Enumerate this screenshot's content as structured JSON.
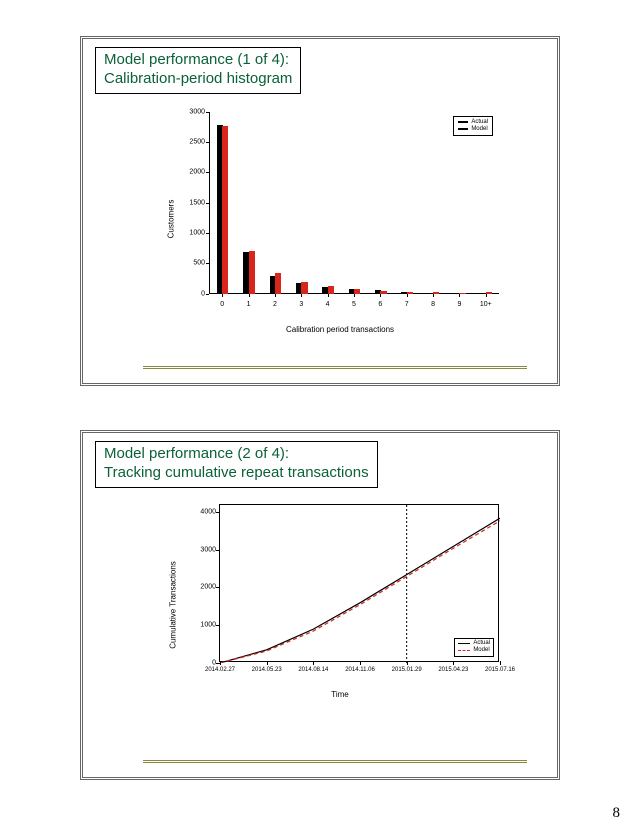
{
  "page_number": "8",
  "slide1": {
    "title_l1": "Model performance (1 of 4):",
    "title_l2": "Calibration-period histogram",
    "chart": {
      "type": "bar",
      "ylabel": "Customers",
      "xlabel": "Calibration period transactions",
      "categories": [
        "0",
        "1",
        "2",
        "3",
        "4",
        "5",
        "6",
        "7",
        "8",
        "9",
        "10+"
      ],
      "y_ticks": [
        0,
        500,
        1000,
        1500,
        2000,
        2500,
        3000
      ],
      "ylim": [
        0,
        3000
      ],
      "series": [
        {
          "name": "Actual",
          "color": "#000000",
          "values": [
            2780,
            680,
            290,
            180,
            110,
            70,
            50,
            30,
            15,
            10,
            10
          ]
        },
        {
          "name": "Model",
          "color": "#d8261c",
          "values": [
            2760,
            700,
            330,
            190,
            120,
            75,
            48,
            28,
            18,
            12,
            18
          ]
        }
      ],
      "bar_width": 0.4,
      "legend_border": "#000000",
      "axis_color": "#000000",
      "background": "#ffffff"
    }
  },
  "slide2": {
    "title_l1": "Model performance (2 of 4):",
    "title_l2": "Tracking cumulative repeat transactions",
    "chart": {
      "type": "line",
      "ylabel": "Cumulative Transactions",
      "xlabel": "Time",
      "x_ticks": [
        "2014-02-27",
        "2014-05-23",
        "2014-08-14",
        "2014-11-06",
        "2015-01-29",
        "2015-04-23",
        "2015-07-16"
      ],
      "y_ticks": [
        0,
        1000,
        2000,
        3000,
        4000
      ],
      "ylim": [
        0,
        4200
      ],
      "vline_index": 4,
      "series": [
        {
          "name": "Actual",
          "color": "#000000",
          "dash": "solid",
          "values": [
            0,
            350,
            900,
            1600,
            2350,
            3100,
            3850
          ]
        },
        {
          "name": "Model",
          "color": "#d8261c",
          "dash": "dashed",
          "values": [
            0,
            320,
            850,
            1550,
            2300,
            3050,
            3780
          ]
        }
      ],
      "plot_border": "#000000",
      "background": "#ffffff",
      "vline_style": "dotted",
      "vline_color": "#000000"
    }
  }
}
